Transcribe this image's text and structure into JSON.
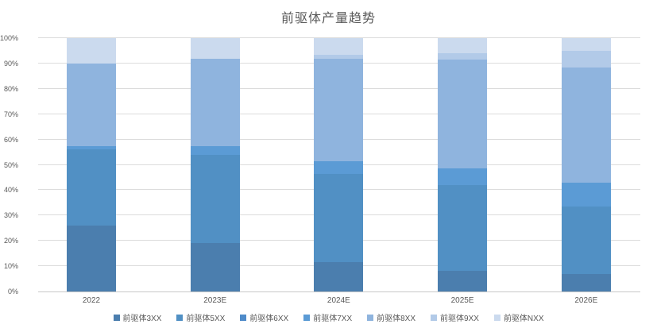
{
  "title": "前驱体产量趋势",
  "chart_data": {
    "type": "bar",
    "stacked": true,
    "percent_stacked": true,
    "title": "前驱体产量趋势",
    "categories": [
      "2022",
      "2023E",
      "2024E",
      "2025E",
      "2026E"
    ],
    "series": [
      {
        "name": "前驱体3XX",
        "color": "#4b7eae",
        "values": [
          26,
          19,
          11.5,
          8,
          7
        ]
      },
      {
        "name": "前驱体5XX",
        "color": "#5190c4",
        "values": [
          30,
          35,
          35,
          34,
          26.5
        ]
      },
      {
        "name": "前驱体6XX",
        "color": "#4f8bc9",
        "values": [
          0,
          0,
          0,
          0,
          0
        ]
      },
      {
        "name": "前驱体7XX",
        "color": "#5b9bd5",
        "values": [
          1.5,
          3.5,
          5,
          6.5,
          9.5
        ]
      },
      {
        "name": "前驱体8XX",
        "color": "#8fb4de",
        "values": [
          32.5,
          34.5,
          40.5,
          43,
          45.5
        ]
      },
      {
        "name": "前驱体9XX",
        "color": "#b2cae8",
        "values": [
          0,
          0,
          1.5,
          2.5,
          6.5
        ]
      },
      {
        "name": "前驱体NXX",
        "color": "#cbdaee",
        "values": [
          10,
          8,
          6.5,
          6,
          5
        ]
      }
    ],
    "xlabel": "",
    "ylabel": "",
    "ylim": [
      0,
      100
    ],
    "yticks": [
      "0%",
      "10%",
      "20%",
      "30%",
      "40%",
      "50%",
      "60%",
      "70%",
      "80%",
      "90%",
      "100%"
    ],
    "grid": true,
    "legend_position": "bottom",
    "colors": {
      "title_text": "#595959",
      "axis_text": "#595959",
      "gridline": "#dcdcdc",
      "baseline": "#c7c7c7",
      "background": "#ffffff"
    }
  }
}
